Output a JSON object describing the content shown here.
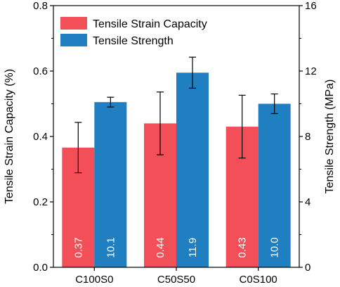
{
  "chart_data": {
    "type": "bar",
    "categories": [
      "C100S0",
      "C50S50",
      "C0S100"
    ],
    "series": [
      {
        "name": "Tensile Strain Capacity",
        "axis": "left",
        "color": "#f24f58",
        "values": [
          0.366,
          0.44,
          0.43
        ],
        "error": [
          0.077,
          0.096,
          0.096
        ],
        "labels": [
          "0.37",
          "0.44",
          "0.43"
        ]
      },
      {
        "name": "Tensile Strength",
        "axis": "right",
        "color": "#1f7fc0",
        "values": [
          10.1,
          11.9,
          10.0
        ],
        "error": [
          0.3,
          0.95,
          0.6
        ],
        "labels": [
          "10.1",
          "11.9",
          "10.0"
        ]
      }
    ],
    "ylabel": "Tensile Strain Capacity (%)",
    "ylabel_right": "Tensile Strength (MPa)",
    "ylim": [
      0,
      0.8
    ],
    "ylim_right": [
      0,
      16
    ],
    "yticks": [
      "0.0",
      "0.2",
      "0.4",
      "0.6",
      "0.8"
    ],
    "yticks_right": [
      "0",
      "4",
      "8",
      "12",
      "16"
    ],
    "legend_position": "top-left",
    "grid": false
  }
}
